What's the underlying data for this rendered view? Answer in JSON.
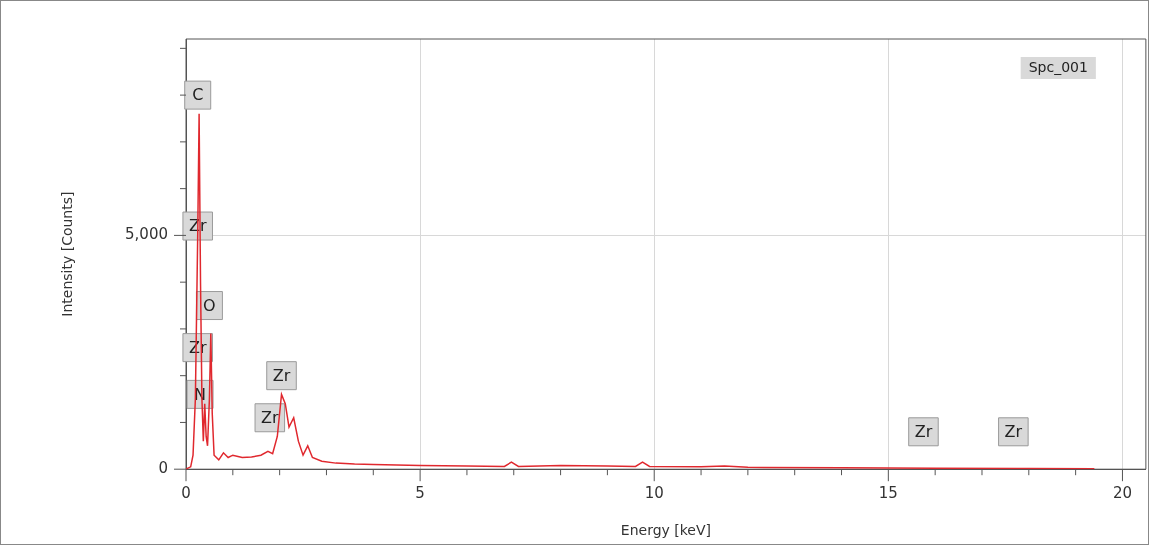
{
  "chart_data": {
    "type": "line",
    "xlabel": "Energy [keV]",
    "ylabel": "Intensity [Counts]",
    "xlim": [
      0,
      20.5
    ],
    "ylim": [
      0,
      9200
    ],
    "xticks": [
      0,
      {
        "value": 1,
        "label": null
      },
      {
        "value": 2,
        "label": null
      },
      {
        "value": 3,
        "label": null
      },
      {
        "value": 4,
        "label": null
      },
      5,
      {
        "value": 6,
        "label": null
      },
      {
        "value": 7,
        "label": null
      },
      {
        "value": 8,
        "label": null
      },
      {
        "value": 9,
        "label": null
      },
      10,
      {
        "value": 11,
        "label": null
      },
      {
        "value": 12,
        "label": null
      },
      {
        "value": 13,
        "label": null
      },
      {
        "value": 14,
        "label": null
      },
      15,
      {
        "value": 16,
        "label": null
      },
      {
        "value": 17,
        "label": null
      },
      {
        "value": 18,
        "label": null
      },
      {
        "value": 19,
        "label": null
      },
      20
    ],
    "yticks": [
      0,
      {
        "value": 1000,
        "label": null
      },
      {
        "value": 2000,
        "label": null
      },
      {
        "value": 3000,
        "label": null
      },
      {
        "value": 4000,
        "label": null
      },
      {
        "value": 5000,
        "label": "5,000"
      },
      {
        "value": 6000,
        "label": null
      },
      {
        "value": 7000,
        "label": null
      },
      {
        "value": 8000,
        "label": null
      },
      {
        "value": 9000,
        "label": null
      }
    ],
    "grid": true,
    "legend": "top right",
    "marker": "none",
    "line_style": "solid",
    "series": [
      {
        "name": "Spc_001",
        "color": "#e0282e",
        "x": [
          0,
          0.1,
          0.15,
          0.2,
          0.25,
          0.28,
          0.31,
          0.34,
          0.37,
          0.4,
          0.43,
          0.46,
          0.5,
          0.53,
          0.56,
          0.6,
          0.7,
          0.8,
          0.9,
          1.0,
          1.2,
          1.4,
          1.6,
          1.75,
          1.85,
          1.95,
          2.04,
          2.12,
          2.2,
          2.3,
          2.4,
          2.5,
          2.6,
          2.7,
          2.9,
          3.2,
          3.6,
          4,
          5,
          6,
          6.8,
          6.95,
          7.1,
          8,
          9,
          9.6,
          9.75,
          9.9,
          11,
          11.5,
          12,
          14,
          16,
          18,
          19.4
        ],
        "values": [
          0,
          50,
          300,
          1500,
          5000,
          7600,
          4000,
          1500,
          600,
          1400,
          700,
          500,
          1500,
          2900,
          1200,
          300,
          200,
          350,
          250,
          300,
          250,
          260,
          300,
          380,
          330,
          700,
          1600,
          1400,
          900,
          1100,
          600,
          300,
          500,
          250,
          170,
          130,
          110,
          100,
          80,
          70,
          60,
          150,
          60,
          80,
          70,
          60,
          150,
          60,
          50,
          70,
          40,
          30,
          20,
          15,
          10
        ]
      }
    ],
    "annotations": [
      {
        "text": "C",
        "x": 0.25,
        "y": 8000
      },
      {
        "text": "Zr",
        "x": 0.25,
        "y": 5200
      },
      {
        "text": "O",
        "x": 0.5,
        "y": 3500
      },
      {
        "text": "Zr",
        "x": 0.25,
        "y": 2600
      },
      {
        "text": "N",
        "x": 0.3,
        "y": 1600
      },
      {
        "text": "Zr",
        "x": 2.04,
        "y": 2000
      },
      {
        "text": "Zr",
        "x": 1.79,
        "y": 1100
      },
      {
        "text": "Zr",
        "x": 15.75,
        "y": 800
      },
      {
        "text": "Zr",
        "x": 17.67,
        "y": 800
      }
    ]
  }
}
